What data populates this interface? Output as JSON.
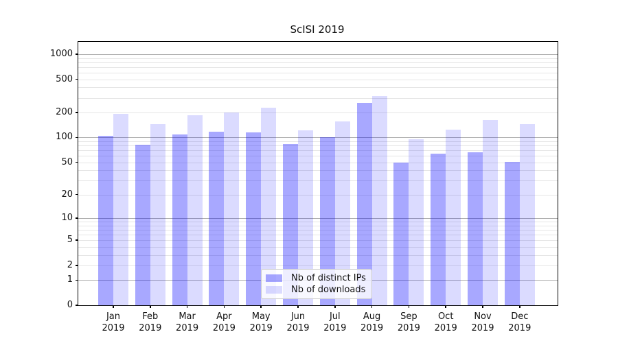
{
  "chart_data": {
    "type": "bar",
    "title": "ScISI 2019",
    "categories": [
      "Jan 2019",
      "Feb 2019",
      "Mar 2019",
      "Apr 2019",
      "May 2019",
      "Jun 2019",
      "Jul 2019",
      "Aug 2019",
      "Sep 2019",
      "Oct 2019",
      "Nov 2019",
      "Dec 2019"
    ],
    "series": [
      {
        "name": "Nb of distinct IPs",
        "color": "rgba(0,0,255,0.34)",
        "values": [
          104,
          82,
          108,
          117,
          115,
          84,
          100,
          261,
          50,
          64,
          66,
          51
        ]
      },
      {
        "name": "Nb of downloads",
        "color": "rgba(0,0,255,0.14)",
        "values": [
          192,
          145,
          184,
          200,
          230,
          122,
          156,
          314,
          96,
          124,
          162,
          145
        ]
      }
    ],
    "yscale": "log1p",
    "yticks": [
      1000,
      500,
      200,
      100,
      50,
      20,
      10,
      5,
      2,
      1,
      0
    ],
    "ylim": [
      0,
      1430
    ],
    "xlabel": "",
    "ylabel": "",
    "grid": true,
    "legend_position": "lower center",
    "colors": {
      "grid_major": "#b0b0b0",
      "grid_minor": "#e5e5e5",
      "axis": "#000000"
    }
  }
}
